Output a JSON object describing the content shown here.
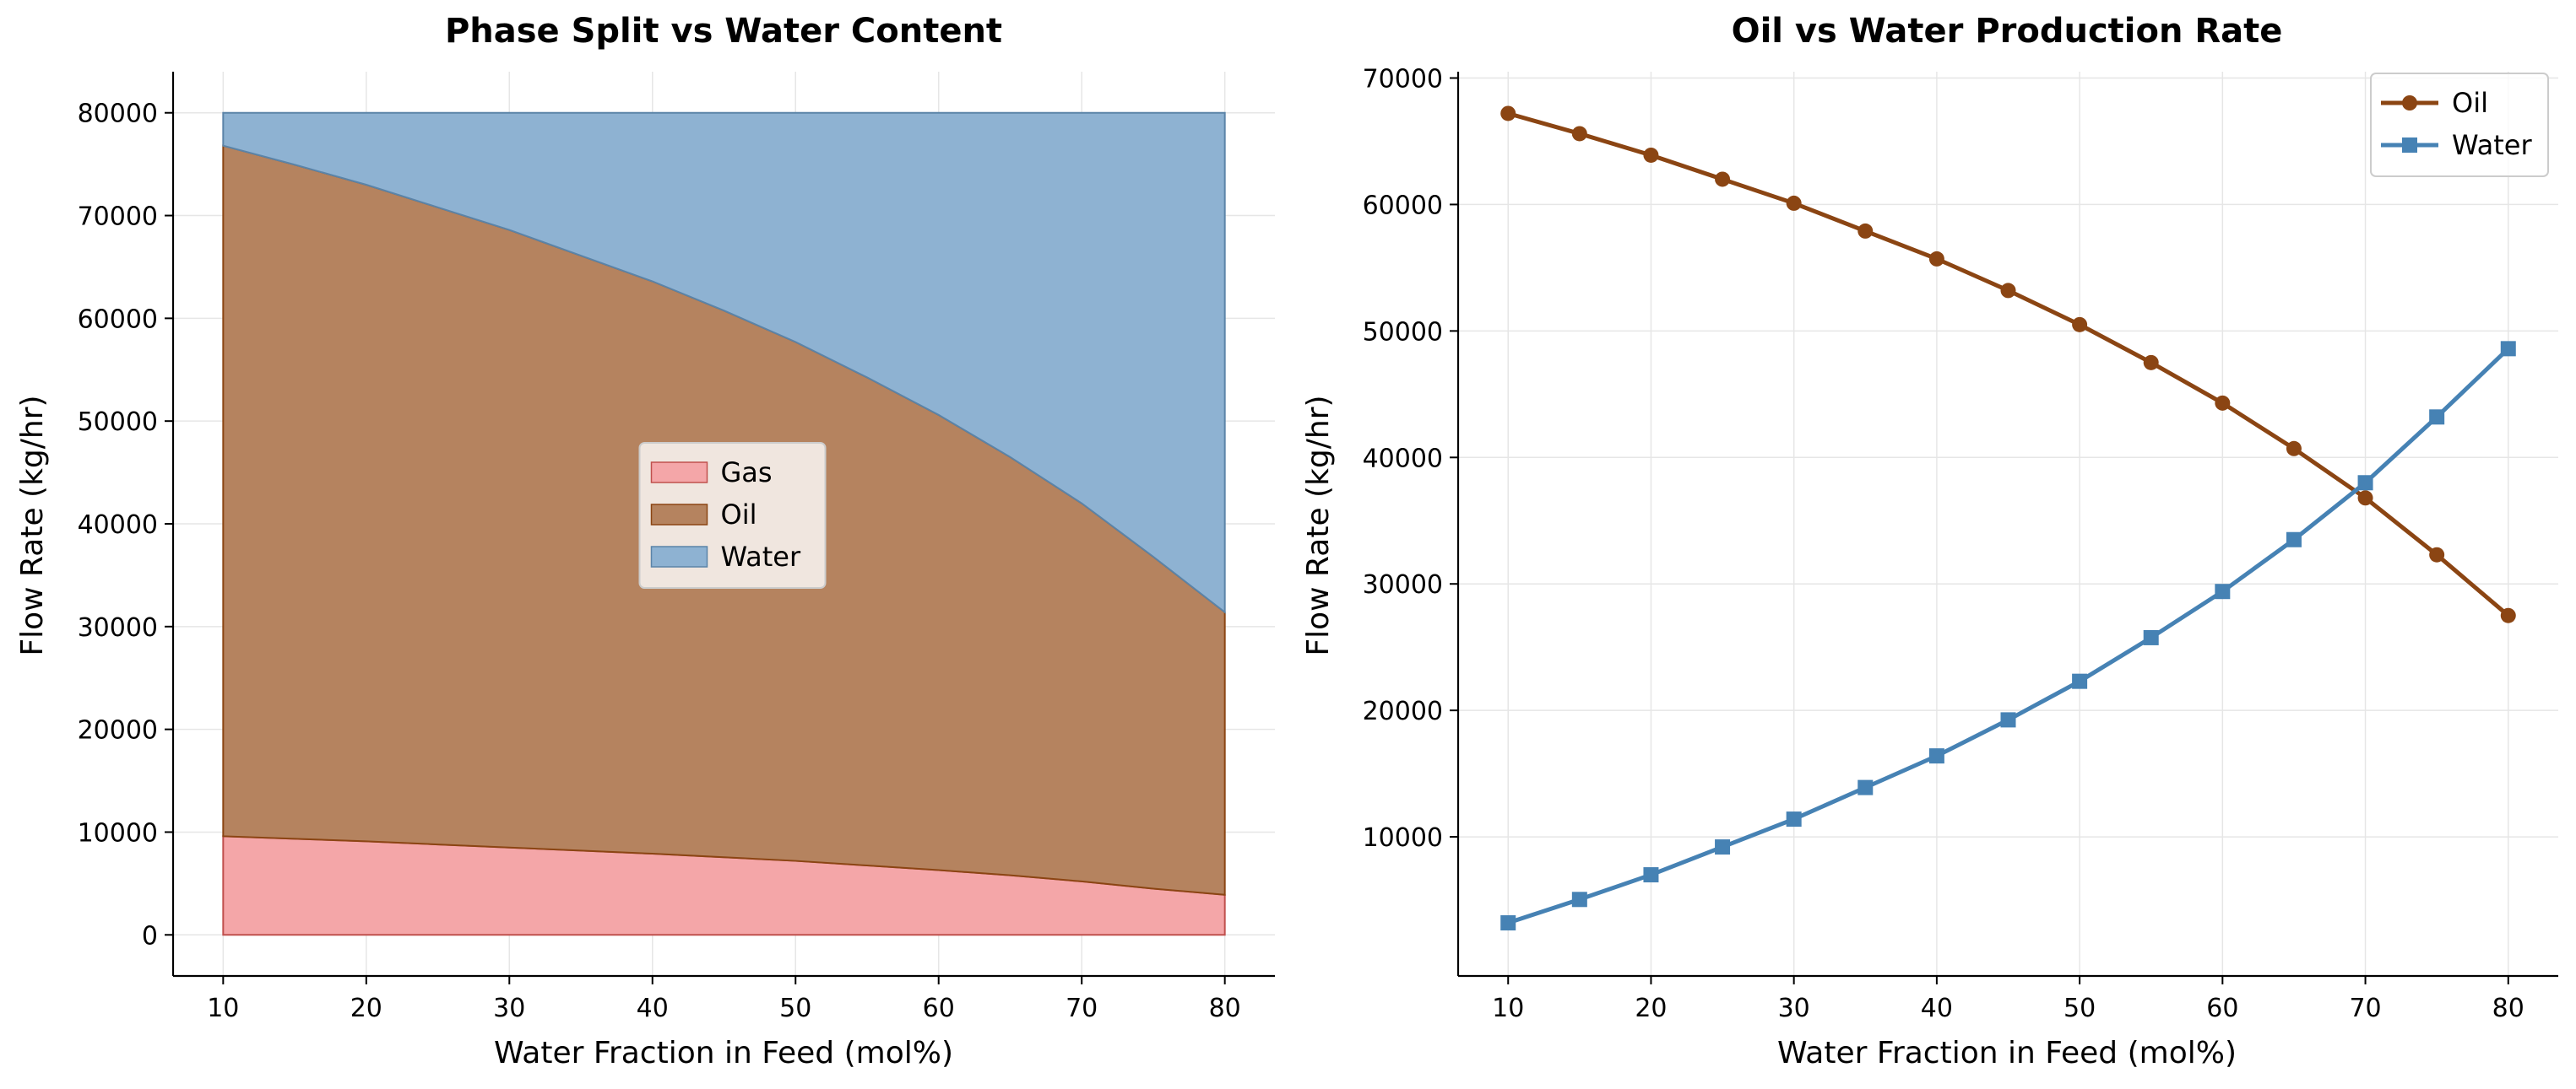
{
  "chart_data": [
    {
      "type": "area",
      "stacked": true,
      "title": "Phase Split vs Water Content",
      "xlabel": "Water Fraction in Feed (mol%)",
      "ylabel": "Flow Rate (kg/hr)",
      "xlim": [
        6.5,
        83.5
      ],
      "ylim": [
        -4000,
        84000
      ],
      "xticks": [
        10,
        20,
        30,
        40,
        50,
        60,
        70,
        80
      ],
      "yticks": [
        0,
        10000,
        20000,
        30000,
        40000,
        50000,
        60000,
        70000,
        80000
      ],
      "grid": true,
      "legend": {
        "position": "center"
      },
      "x": [
        10,
        15,
        20,
        25,
        30,
        35,
        40,
        45,
        50,
        55,
        60,
        65,
        70,
        75,
        80
      ],
      "series": [
        {
          "name": "Gas",
          "color": "#f4a6a8",
          "edge": "#c0504d",
          "values": [
            9600,
            9350,
            9100,
            8800,
            8500,
            8200,
            7900,
            7550,
            7200,
            6750,
            6300,
            5800,
            5200,
            4500,
            3900
          ]
        },
        {
          "name": "Oil",
          "color": "#b5835f",
          "edge": "#8b4513",
          "values": [
            67200,
            65600,
            63900,
            62000,
            60100,
            57900,
            55700,
            53200,
            50500,
            47500,
            44300,
            40700,
            36800,
            32300,
            27500
          ]
        },
        {
          "name": "Water",
          "color": "#8eb2d2",
          "edge": "#5b84a8",
          "values": [
            3200,
            5050,
            7000,
            9200,
            11400,
            13900,
            16400,
            19250,
            22300,
            25750,
            29400,
            33500,
            38000,
            43200,
            48600
          ]
        }
      ]
    },
    {
      "type": "line",
      "title": "Oil vs Water Production Rate",
      "xlabel": "Water Fraction in Feed (mol%)",
      "ylabel": "Flow Rate (kg/hr)",
      "xlim": [
        6.5,
        83.5
      ],
      "ylim": [
        -1000,
        70500
      ],
      "xticks": [
        10,
        20,
        30,
        40,
        50,
        60,
        70,
        80
      ],
      "yticks": [
        10000,
        20000,
        30000,
        40000,
        50000,
        60000,
        70000
      ],
      "grid": true,
      "legend": {
        "position": "top-right"
      },
      "x": [
        10,
        15,
        20,
        25,
        30,
        35,
        40,
        45,
        50,
        55,
        60,
        65,
        70,
        75,
        80
      ],
      "series": [
        {
          "name": "Oil",
          "color": "#8b4513",
          "marker": "circle",
          "values": [
            67200,
            65600,
            63900,
            62000,
            60100,
            57900,
            55700,
            53200,
            50500,
            47500,
            44300,
            40700,
            36800,
            32300,
            27500
          ]
        },
        {
          "name": "Water",
          "color": "#4682b4",
          "marker": "square",
          "values": [
            3200,
            5050,
            7000,
            9200,
            11400,
            13900,
            16400,
            19250,
            22300,
            25750,
            29400,
            33500,
            38000,
            43200,
            48600
          ]
        }
      ]
    }
  ]
}
